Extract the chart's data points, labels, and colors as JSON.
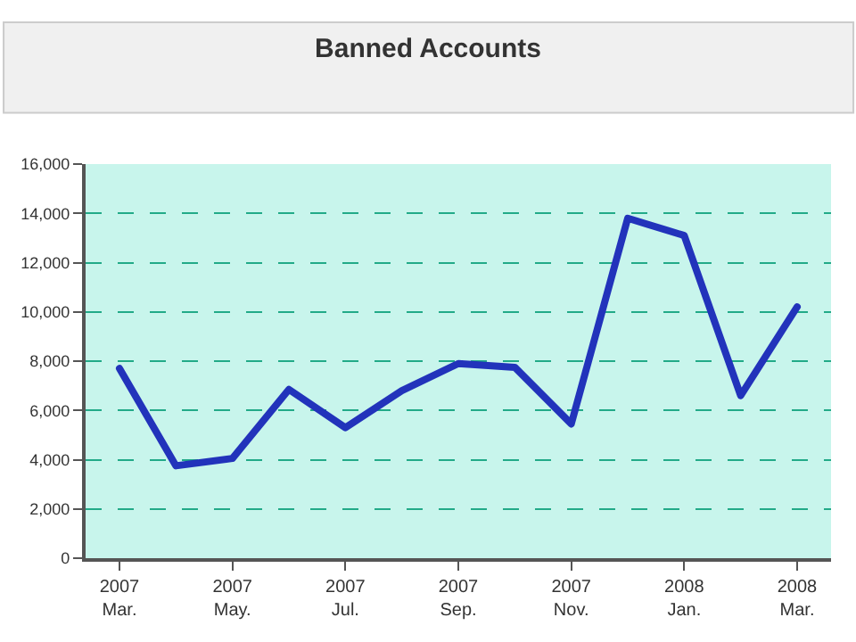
{
  "chart_data": {
    "type": "line",
    "title": "Banned Accounts",
    "categories": [
      "2007\nMar.",
      null,
      "2007\nMay.",
      null,
      "2007\nJul.",
      null,
      "2007\nSep.",
      null,
      "2007\nNov.",
      null,
      "2008\nJan.",
      null,
      "2008\nMar."
    ],
    "series": [
      {
        "color": "#2233bb",
        "values": [
          7700,
          3750,
          4050,
          6850,
          5300,
          6800,
          7900,
          7750,
          5450,
          13800,
          13100,
          6600,
          10200
        ]
      }
    ],
    "ylim": [
      0,
      16000
    ],
    "yticks": [
      0,
      {
        "value": 2000,
        "label": "2,000"
      },
      {
        "value": 4000,
        "label": "4,000"
      },
      {
        "value": 6000,
        "label": "6,000"
      },
      {
        "value": 8000,
        "label": "8,000"
      },
      {
        "value": 10000,
        "label": "10,000"
      },
      {
        "value": 12000,
        "label": "12,000"
      },
      {
        "value": 14000,
        "label": "14,000"
      },
      {
        "value": 16000,
        "label": "16,000"
      }
    ],
    "grid": "y",
    "marker": "none",
    "line_style": "solid"
  }
}
